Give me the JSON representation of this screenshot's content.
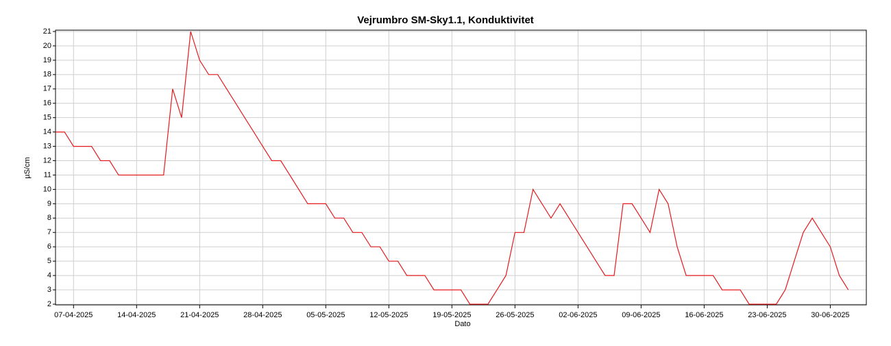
{
  "chart_data": {
    "type": "line",
    "title": "Vejrumbro SM-Sky1.1, Konduktivitet",
    "x_label": "Dato",
    "y_label": "µS/cm",
    "xlim": [
      "05-04-2025",
      "04-07-2025"
    ],
    "xticks": [
      "07-04-2025",
      "14-04-2025",
      "21-04-2025",
      "28-04-2025",
      "05-05-2025",
      "12-05-2025",
      "19-05-2025",
      "26-05-2025",
      "02-06-2025",
      "09-06-2025",
      "16-06-2025",
      "23-06-2025",
      "30-06-2025"
    ],
    "ylim": [
      2,
      21
    ],
    "yticks": [
      2,
      3,
      4,
      5,
      6,
      7,
      8,
      9,
      10,
      11,
      12,
      13,
      14,
      15,
      16,
      17,
      18,
      19,
      20,
      21
    ],
    "grid": true,
    "x": [
      "05-04-2025",
      "06-04-2025",
      "07-04-2025",
      "08-04-2025",
      "09-04-2025",
      "10-04-2025",
      "11-04-2025",
      "12-04-2025",
      "13-04-2025",
      "14-04-2025",
      "15-04-2025",
      "16-04-2025",
      "17-04-2025",
      "18-04-2025",
      "19-04-2025",
      "20-04-2025",
      "21-04-2025",
      "22-04-2025",
      "23-04-2025",
      "24-04-2025",
      "25-04-2025",
      "26-04-2025",
      "27-04-2025",
      "28-04-2025",
      "29-04-2025",
      "30-04-2025",
      "01-05-2025",
      "02-05-2025",
      "03-05-2025",
      "04-05-2025",
      "05-05-2025",
      "06-05-2025",
      "07-05-2025",
      "08-05-2025",
      "09-05-2025",
      "10-05-2025",
      "11-05-2025",
      "12-05-2025",
      "13-05-2025",
      "14-05-2025",
      "15-05-2025",
      "16-05-2025",
      "17-05-2025",
      "18-05-2025",
      "19-05-2025",
      "20-05-2025",
      "21-05-2025",
      "22-05-2025",
      "23-05-2025",
      "24-05-2025",
      "25-05-2025",
      "26-05-2025",
      "27-05-2025",
      "28-05-2025",
      "29-05-2025",
      "30-05-2025",
      "31-05-2025",
      "01-06-2025",
      "02-06-2025",
      "03-06-2025",
      "04-06-2025",
      "05-06-2025",
      "06-06-2025",
      "07-06-2025",
      "08-06-2025",
      "09-06-2025",
      "10-06-2025",
      "11-06-2025",
      "12-06-2025",
      "13-06-2025",
      "14-06-2025",
      "15-06-2025",
      "16-06-2025",
      "17-06-2025",
      "18-06-2025",
      "19-06-2025",
      "20-06-2025",
      "21-06-2025",
      "22-06-2025",
      "23-06-2025",
      "24-06-2025",
      "25-06-2025",
      "26-06-2025",
      "27-06-2025",
      "28-06-2025",
      "29-06-2025",
      "30-06-2025",
      "01-07-2025",
      "02-07-2025"
    ],
    "series": [
      {
        "name": "Konduktivitet",
        "color": "#e41a1c",
        "values": [
          14,
          14,
          13,
          13,
          13,
          12,
          12,
          11,
          11,
          11,
          11,
          11,
          11,
          17,
          15,
          21,
          19,
          18,
          18,
          17,
          16,
          15,
          14,
          13,
          12,
          12,
          11,
          10,
          9,
          9,
          9,
          8,
          8,
          7,
          7,
          6,
          6,
          5,
          5,
          4,
          4,
          4,
          3,
          3,
          3,
          3,
          2,
          2,
          2,
          3,
          4,
          7,
          7,
          10,
          9,
          8,
          9,
          8,
          7,
          6,
          5,
          4,
          4,
          9,
          9,
          8,
          7,
          10,
          9,
          6,
          4,
          4,
          4,
          4,
          3,
          3,
          3,
          2,
          2,
          2,
          2,
          3,
          5,
          7,
          8,
          7,
          6,
          4,
          3
        ]
      }
    ]
  }
}
